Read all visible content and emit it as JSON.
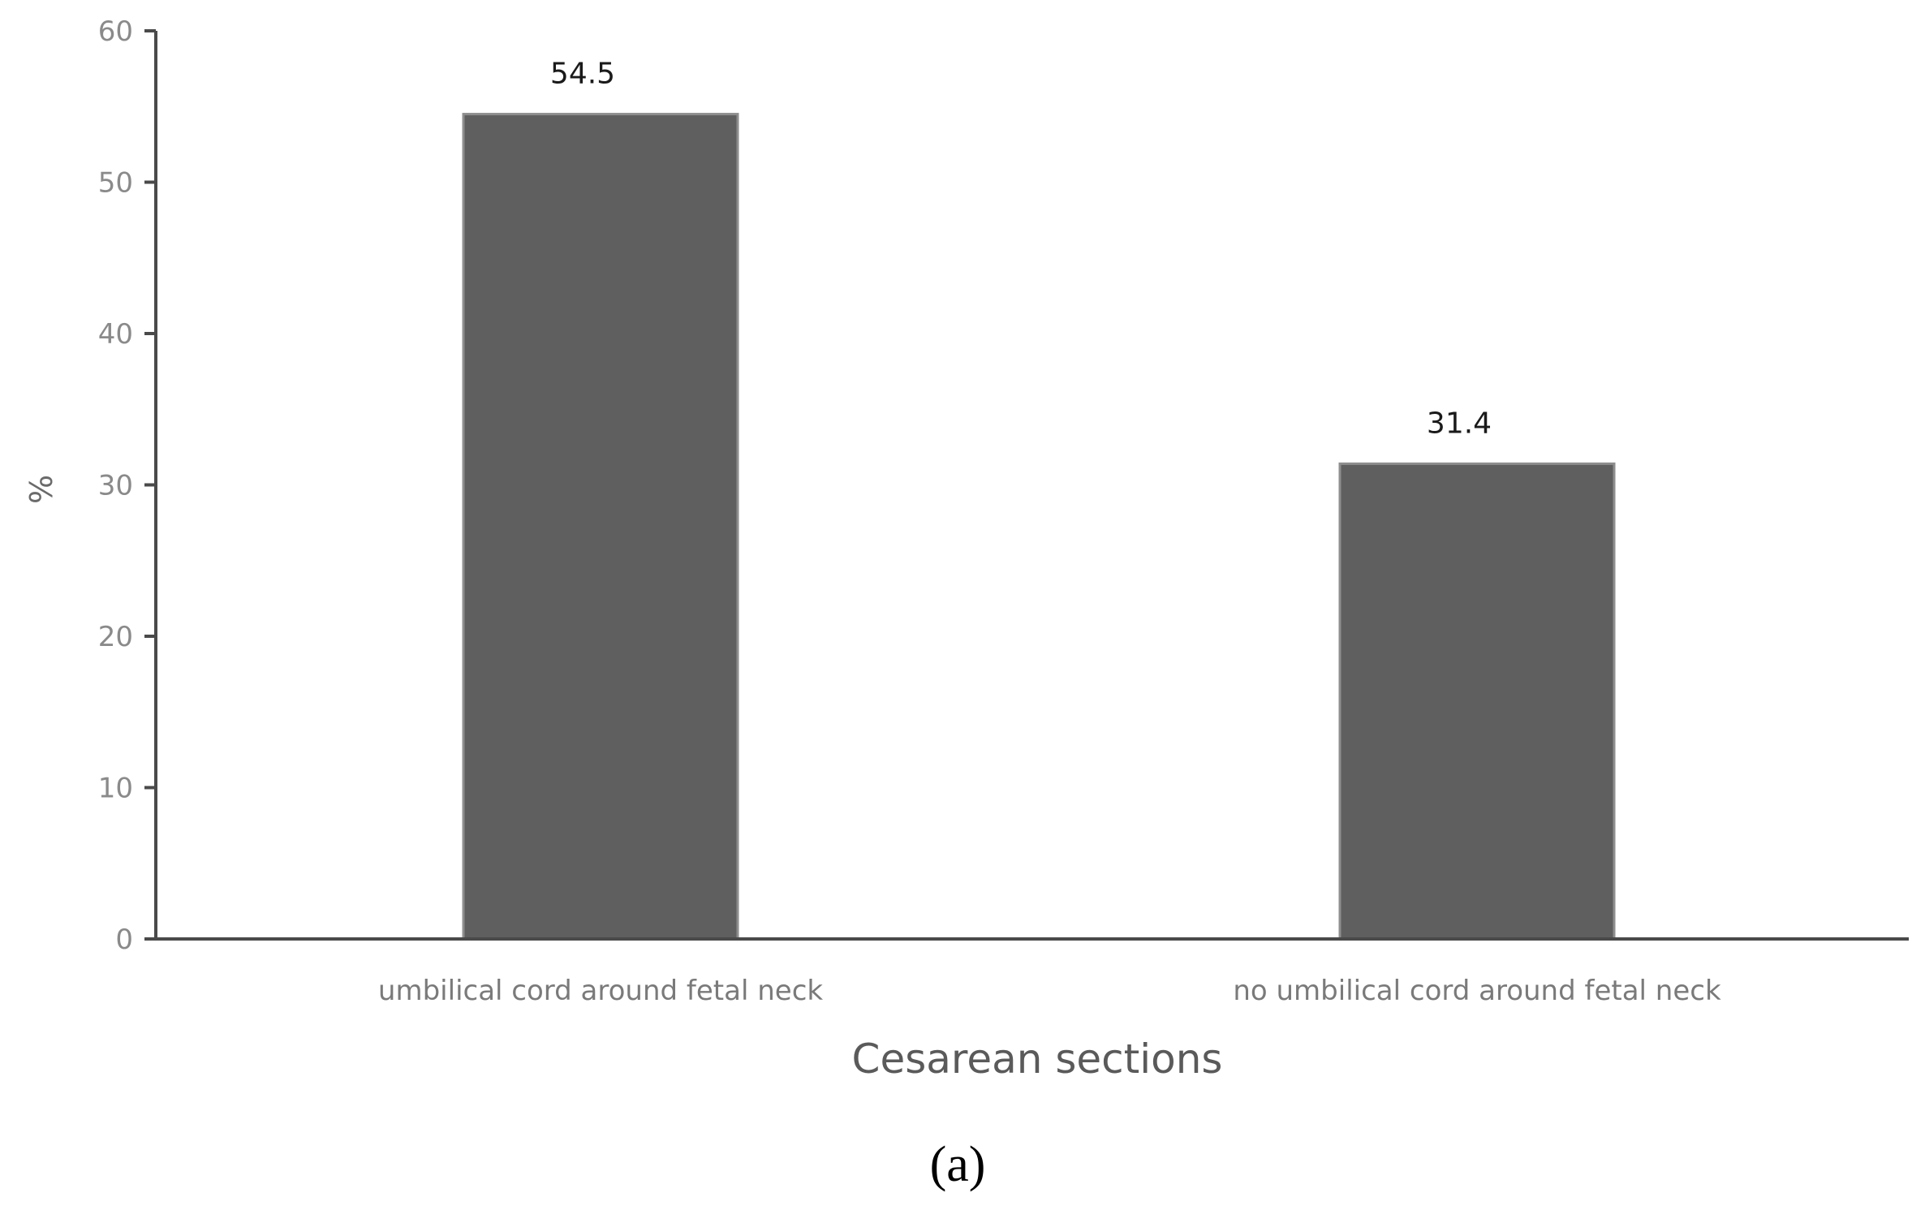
{
  "chart_data": {
    "type": "bar",
    "categories": [
      "umbilical cord around fetal neck",
      "no umbilical cord around fetal neck"
    ],
    "values": [
      54.5,
      31.4
    ],
    "data_labels": [
      "54.5",
      "31.4"
    ],
    "xlabel": "Cesarean sections",
    "ylabel": "%",
    "ylim": [
      0,
      60
    ],
    "yticks": [
      0,
      10,
      20,
      30,
      40,
      50,
      60
    ],
    "grid": false,
    "bar_color": "#5f5f5f",
    "axis_color": "#4a4a4a"
  },
  "panel_label": "(a)"
}
